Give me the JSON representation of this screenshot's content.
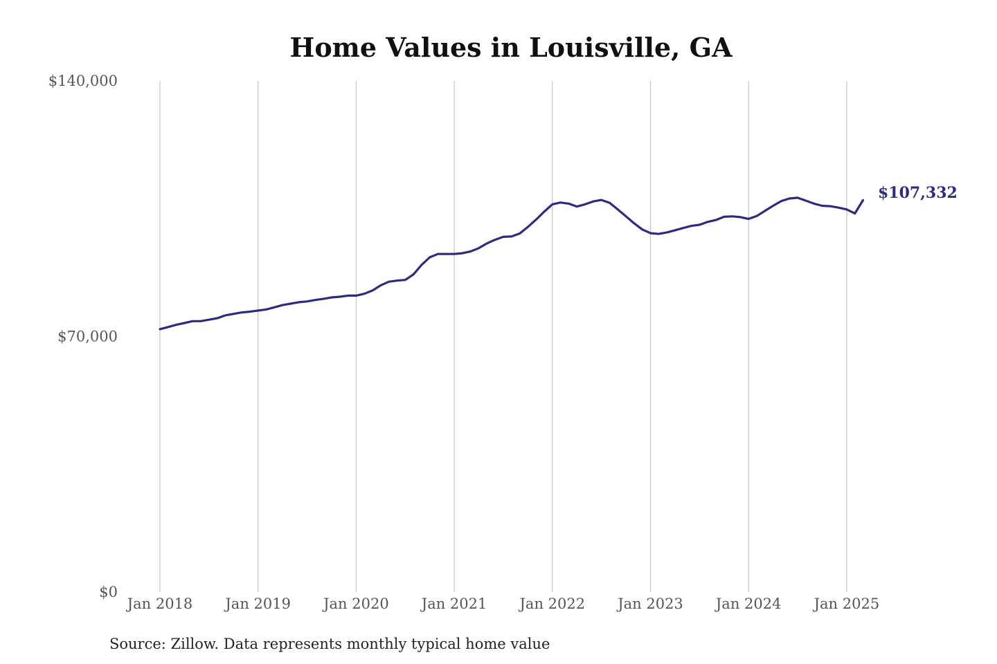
{
  "chart_data": {
    "type": "line",
    "title": "Home Values in Louisville, GA",
    "source": "Source: Zillow. Data represents monthly typical home value",
    "ylim": [
      0,
      140000
    ],
    "y_ticks": [
      "$140,000",
      "$70,000",
      "$0"
    ],
    "y_tick_values": [
      140000,
      70000,
      0
    ],
    "x_ticks": [
      "Jan 2018",
      "Jan 2019",
      "Jan 2020",
      "Jan 2021",
      "Jan 2022",
      "Jan 2023",
      "Jan 2024",
      "Jan 2025"
    ],
    "grid": "vertical",
    "line_color": "#2e2a80",
    "end_label": "$107,332",
    "series": [
      {
        "x": [
          "2018-01",
          "2018-02",
          "2018-03",
          "2018-04",
          "2018-05",
          "2018-06",
          "2018-07",
          "2018-08",
          "2018-09",
          "2018-10",
          "2018-11",
          "2018-12",
          "2019-01",
          "2019-02",
          "2019-03",
          "2019-04",
          "2019-05",
          "2019-06",
          "2019-07",
          "2019-08",
          "2019-09",
          "2019-10",
          "2019-11",
          "2019-12",
          "2020-01",
          "2020-02",
          "2020-03",
          "2020-04",
          "2020-05",
          "2020-06",
          "2020-07",
          "2020-08",
          "2020-09",
          "2020-10",
          "2020-11",
          "2020-12",
          "2021-01",
          "2021-02",
          "2021-03",
          "2021-04",
          "2021-05",
          "2021-06",
          "2021-07",
          "2021-08",
          "2021-09",
          "2021-10",
          "2021-11",
          "2021-12",
          "2022-01",
          "2022-02",
          "2022-03",
          "2022-04",
          "2022-05",
          "2022-06",
          "2022-07",
          "2022-08",
          "2022-09",
          "2022-10",
          "2022-11",
          "2022-12",
          "2023-01",
          "2023-02",
          "2023-03",
          "2023-04",
          "2023-05",
          "2023-06",
          "2023-07",
          "2023-08",
          "2023-09",
          "2023-10",
          "2023-11",
          "2023-12",
          "2024-01",
          "2024-02",
          "2024-03",
          "2024-04",
          "2024-05",
          "2024-06",
          "2024-07",
          "2024-08",
          "2024-09",
          "2024-10",
          "2024-11",
          "2024-12",
          "2025-01",
          "2025-02",
          "2025-03"
        ],
        "values": [
          72000,
          72600,
          73200,
          73700,
          74200,
          74200,
          74600,
          75000,
          75800,
          76200,
          76600,
          76800,
          77100,
          77400,
          78000,
          78600,
          79000,
          79400,
          79600,
          80000,
          80300,
          80700,
          80900,
          81200,
          81200,
          81700,
          82600,
          84000,
          85000,
          85300,
          85500,
          87000,
          89600,
          91700,
          92600,
          92600,
          92600,
          92800,
          93300,
          94200,
          95500,
          96500,
          97300,
          97400,
          98200,
          100000,
          102000,
          104200,
          106200,
          106700,
          106400,
          105600,
          106200,
          107000,
          107400,
          106600,
          104800,
          102900,
          101000,
          99300,
          98300,
          98100,
          98500,
          99100,
          99700,
          100300,
          100600,
          101400,
          101900,
          102800,
          102900,
          102700,
          102200,
          103000,
          104400,
          105800,
          107100,
          107800,
          108000,
          107200,
          106400,
          105800,
          105700,
          105300,
          104800,
          103700,
          107332
        ]
      }
    ]
  }
}
